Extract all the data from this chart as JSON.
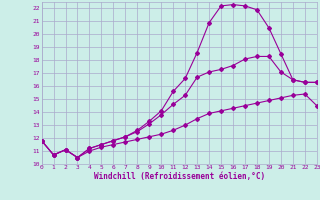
{
  "bg_color": "#cceee8",
  "grid_color": "#aaaacc",
  "line_color": "#990099",
  "xlim": [
    0,
    23
  ],
  "ylim": [
    10,
    22.5
  ],
  "xticks": [
    0,
    1,
    2,
    3,
    4,
    5,
    6,
    7,
    8,
    9,
    10,
    11,
    12,
    13,
    14,
    15,
    16,
    17,
    18,
    19,
    20,
    21,
    22,
    23
  ],
  "yticks": [
    10,
    11,
    12,
    13,
    14,
    15,
    16,
    17,
    18,
    19,
    20,
    21,
    22
  ],
  "xlabel": "Windchill (Refroidissement éolien,°C)",
  "line1_x": [
    0,
    1,
    2,
    3,
    4,
    5,
    6,
    7,
    8,
    9,
    10,
    11,
    12,
    13,
    14,
    15,
    16,
    17,
    18,
    19,
    20,
    21,
    22,
    23
  ],
  "line1_y": [
    11.8,
    10.7,
    11.1,
    10.5,
    11.0,
    11.3,
    11.5,
    11.7,
    11.9,
    12.1,
    12.3,
    12.6,
    13.0,
    13.5,
    13.9,
    14.1,
    14.3,
    14.5,
    14.7,
    14.9,
    15.1,
    15.3,
    15.4,
    14.5
  ],
  "line2_x": [
    0,
    1,
    2,
    3,
    4,
    5,
    6,
    7,
    8,
    9,
    10,
    11,
    12,
    13,
    14,
    15,
    16,
    17,
    18,
    19,
    20,
    21,
    22,
    23
  ],
  "line2_y": [
    11.8,
    10.7,
    11.1,
    10.5,
    11.2,
    11.5,
    11.8,
    12.1,
    12.5,
    13.1,
    13.8,
    14.6,
    15.3,
    16.7,
    17.1,
    17.3,
    17.6,
    18.1,
    18.3,
    18.3,
    17.1,
    16.5,
    16.3,
    16.3
  ],
  "line3_x": [
    0,
    1,
    2,
    3,
    4,
    5,
    6,
    7,
    8,
    9,
    10,
    11,
    12,
    13,
    14,
    15,
    16,
    17,
    18,
    19,
    20,
    21,
    22,
    23
  ],
  "line3_y": [
    11.8,
    10.7,
    11.1,
    10.5,
    11.2,
    11.5,
    11.8,
    12.1,
    12.6,
    13.3,
    14.1,
    15.6,
    16.6,
    18.6,
    20.9,
    22.2,
    22.3,
    22.2,
    21.9,
    20.5,
    18.5,
    16.5,
    16.3,
    16.3
  ]
}
